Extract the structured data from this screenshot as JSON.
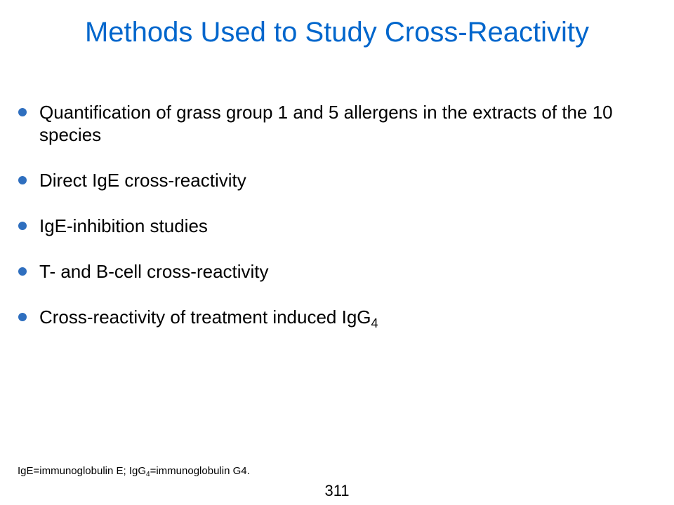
{
  "title": "Methods Used to Study Cross-Reactivity",
  "colors": {
    "title": "#0066cc",
    "bullet": "#2f6fbf",
    "text": "#000000",
    "background": "#ffffff"
  },
  "bullets": [
    {
      "text": "Quantification of grass group 1 and 5 allergens in the extracts of the 10 species"
    },
    {
      "text": "Direct IgE cross-reactivity"
    },
    {
      "text": "IgE-inhibition studies"
    },
    {
      "text": "T- and B-cell cross-reactivity"
    },
    {
      "text": "Cross-reactivity of treatment induced IgG",
      "subscript": "4"
    }
  ],
  "footnote": {
    "part1": "IgE=immunoglobulin E; IgG",
    "subscript": "4",
    "part2": "=immunoglobulin G4."
  },
  "page_number": "311"
}
